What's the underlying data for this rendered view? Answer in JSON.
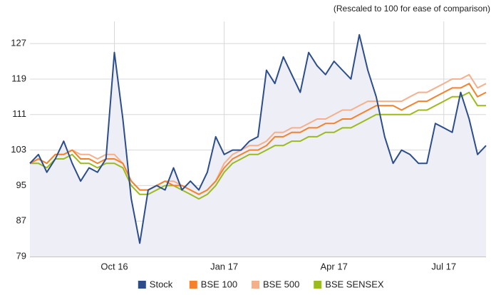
{
  "chart_data": {
    "type": "line",
    "subtitle": "(Rescaled to 100 for ease of comparison)",
    "categories": [
      null,
      null,
      null,
      null,
      null,
      null,
      null,
      null,
      null,
      null,
      "Oct 16",
      null,
      null,
      null,
      null,
      null,
      null,
      null,
      null,
      null,
      null,
      null,
      null,
      "Jan 17",
      null,
      null,
      null,
      null,
      null,
      null,
      null,
      null,
      null,
      null,
      null,
      null,
      "Apr 17",
      null,
      null,
      null,
      null,
      null,
      null,
      null,
      null,
      null,
      null,
      null,
      null,
      "Jul 17",
      null,
      null,
      null,
      null,
      null
    ],
    "series": [
      {
        "name": "Stock",
        "color": "#2b4d8c",
        "values": [
          100,
          102,
          98,
          101,
          105,
          100,
          96,
          99,
          98,
          101,
          125,
          110,
          92,
          82,
          94,
          95,
          94,
          99,
          94,
          96,
          94,
          98,
          106,
          102,
          103,
          103,
          105,
          106,
          121,
          118,
          124,
          120,
          116,
          125,
          122,
          120,
          123,
          121,
          119,
          129,
          121,
          115,
          106,
          100,
          103,
          102,
          100,
          100,
          109,
          108,
          107,
          116,
          110,
          102,
          104
        ]
      },
      {
        "name": "BSE 100",
        "color": "#f5822a",
        "values": [
          100,
          101,
          100,
          102,
          102,
          103,
          101,
          101,
          100,
          101,
          101,
          100,
          96,
          94,
          94,
          95,
          96,
          95,
          95,
          94,
          93,
          94,
          96,
          99,
          101,
          102,
          103,
          103,
          104,
          106,
          106,
          107,
          107,
          108,
          108,
          109,
          109,
          110,
          110,
          111,
          112,
          113,
          113,
          113,
          112,
          113,
          114,
          114,
          115,
          116,
          117,
          117,
          118,
          115,
          116
        ]
      },
      {
        "name": "BSE 500",
        "color": "#f5b08b",
        "values": [
          100,
          101,
          100,
          102,
          102,
          103,
          102,
          102,
          101,
          102,
          102,
          100,
          96,
          94,
          94,
          95,
          96,
          96,
          95,
          94,
          93,
          94,
          96,
          100,
          102,
          103,
          104,
          104,
          105,
          107,
          107,
          108,
          108,
          109,
          110,
          110,
          111,
          112,
          112,
          113,
          114,
          114,
          114,
          114,
          114,
          115,
          116,
          116,
          117,
          118,
          119,
          119,
          120,
          117,
          118
        ]
      },
      {
        "name": "BSE SENSEX",
        "color": "#9bbb1a",
        "values": [
          100,
          100,
          99,
          101,
          101,
          102,
          100,
          100,
          99,
          100,
          100,
          99,
          95,
          93,
          93,
          94,
          95,
          95,
          94,
          93,
          92,
          93,
          95,
          98,
          100,
          101,
          102,
          102,
          103,
          104,
          104,
          105,
          105,
          106,
          106,
          107,
          107,
          108,
          108,
          109,
          110,
          111,
          111,
          111,
          111,
          111,
          112,
          112,
          113,
          114,
          115,
          115,
          116,
          113,
          113
        ]
      }
    ],
    "ylim": [
      79,
      132
    ],
    "yticks": [
      79,
      87,
      95,
      103,
      111,
      119,
      127
    ],
    "grid": true,
    "legend": "bottom"
  }
}
